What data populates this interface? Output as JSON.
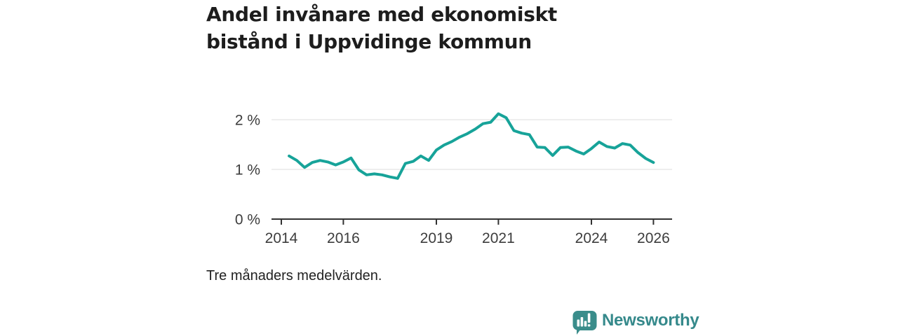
{
  "title": {
    "lines": [
      "Andel invånare med ekonomiskt",
      "bistånd i Uppvidinge kommun"
    ],
    "full": "Andel invånare med ekonomiskt bistånd i Uppvidinge kommun"
  },
  "footnote": "Tre månaders medelvärden.",
  "branding": {
    "name": "Newsworthy",
    "icon": "newsworthy-speech-bubble-chart-icon",
    "color": "#3a8d8b"
  },
  "chart_data": {
    "type": "line",
    "title": "Andel invånare med ekonomiskt bistånd i Uppvidinge kommun",
    "note": "Tre månaders medelvärden.",
    "unit": "%",
    "x_start": 2014.25,
    "x_step": 0.25,
    "values": [
      1.27,
      1.18,
      1.04,
      1.14,
      1.18,
      1.15,
      1.09,
      1.15,
      1.23,
      0.99,
      0.89,
      0.91,
      0.89,
      0.85,
      0.82,
      1.12,
      1.16,
      1.27,
      1.18,
      1.39,
      1.49,
      1.56,
      1.65,
      1.72,
      1.81,
      1.92,
      1.95,
      2.12,
      2.04,
      1.78,
      1.73,
      1.7,
      1.45,
      1.44,
      1.28,
      1.44,
      1.45,
      1.37,
      1.31,
      1.42,
      1.55,
      1.46,
      1.43,
      1.52,
      1.49,
      1.34,
      1.22,
      1.14
    ],
    "x_tick_years": [
      2014,
      2016,
      2019,
      2021,
      2024,
      2026
    ],
    "y_ticks": [
      {
        "value": 0,
        "label": "0 %"
      },
      {
        "value": 1,
        "label": "1 %"
      },
      {
        "value": 2,
        "label": "2 %"
      }
    ],
    "xlim": [
      2013.7,
      2026.6
    ],
    "ylim": [
      0,
      2.3
    ],
    "grid": true,
    "legend": false,
    "line_color": "#17a399"
  }
}
